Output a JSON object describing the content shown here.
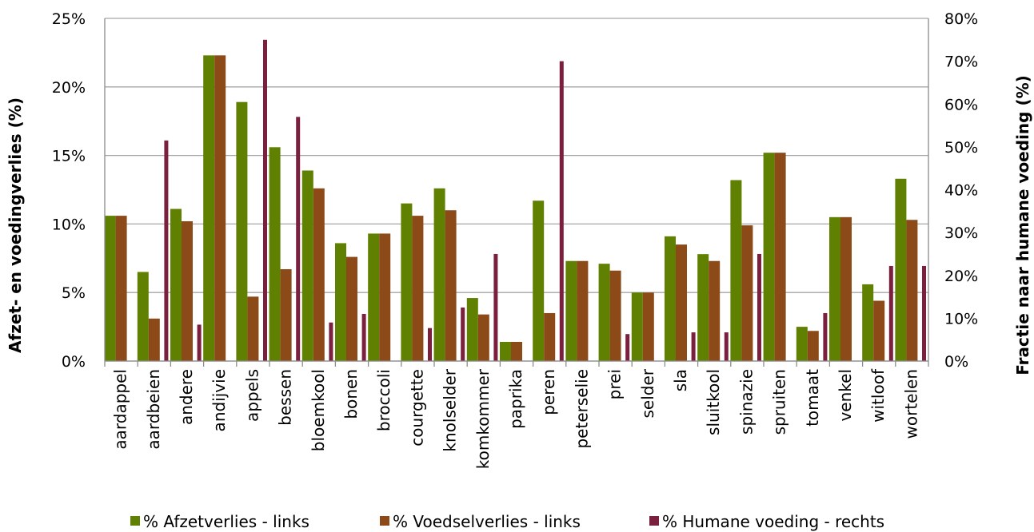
{
  "chart_data": {
    "type": "bar",
    "title": "",
    "categories": [
      "aardappel",
      "aardbeien",
      "andere",
      "andijvie",
      "appels",
      "bessen",
      "bloemkool",
      "bonen",
      "broccoli",
      "courgette",
      "knolselder",
      "komkommer",
      "paprika",
      "peren",
      "peterselie",
      "prei",
      "selder",
      "sla",
      "sluitkool",
      "spinazie",
      "spruiten",
      "tomaat",
      "venkel",
      "witloof",
      "wortelen"
    ],
    "series": [
      {
        "name": "% Afzetverlies - links",
        "axis": "left",
        "color": "#5f8000",
        "values": [
          10.6,
          6.5,
          11.1,
          22.3,
          18.9,
          15.6,
          13.9,
          8.6,
          9.3,
          11.5,
          12.6,
          4.6,
          1.4,
          11.7,
          7.3,
          7.1,
          5.0,
          9.1,
          7.8,
          13.2,
          15.2,
          2.5,
          10.5,
          5.6,
          13.3
        ]
      },
      {
        "name": "% Voedselverlies - links",
        "axis": "left",
        "color": "#8b4a18",
        "values": [
          10.6,
          3.1,
          10.2,
          22.3,
          4.7,
          6.7,
          12.6,
          7.6,
          9.3,
          10.6,
          11.0,
          3.4,
          1.4,
          3.5,
          7.3,
          6.6,
          5.0,
          8.5,
          7.3,
          9.9,
          15.2,
          2.2,
          10.5,
          4.4,
          10.3
        ]
      },
      {
        "name": "% Humane voeding - rechts",
        "axis": "right",
        "color": "#7a1f3d",
        "values": [
          0,
          51.5,
          8.5,
          0,
          75,
          57,
          9,
          11,
          0,
          7.7,
          12.5,
          25,
          0,
          70,
          0,
          6.3,
          0,
          6.7,
          6.7,
          25,
          0,
          11.2,
          0,
          22.2,
          22.2
        ]
      }
    ],
    "ylabel": "Afzet- en voedingverlies (%)",
    "ylabel_right": "Fractie naar humane voeding (%)",
    "ylim": [
      0,
      25
    ],
    "ylim_right": [
      0,
      80
    ],
    "yticks": [
      "0%",
      "5%",
      "10%",
      "15%",
      "20%",
      "25%"
    ],
    "yticks_right": [
      "0%",
      "10%",
      "20%",
      "30%",
      "40%",
      "50%",
      "60%",
      "70%",
      "80%"
    ],
    "grid": true,
    "legend": "bottom"
  }
}
